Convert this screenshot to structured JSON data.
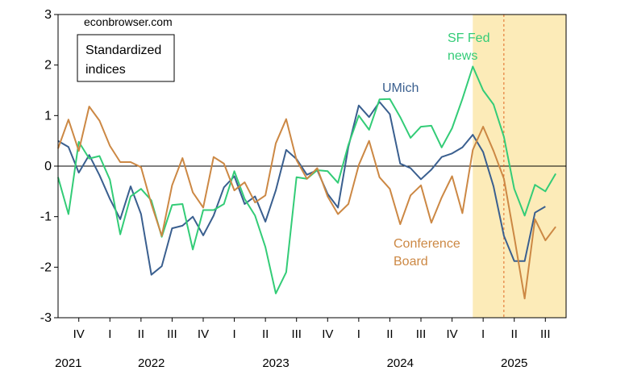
{
  "chart_data": {
    "type": "line",
    "source_note": "econbrowser.com",
    "title_box": [
      "Standardized",
      "indices"
    ],
    "ylim": [
      -3,
      3
    ],
    "yticks": [
      3,
      2,
      1,
      0,
      -1,
      -2,
      -3
    ],
    "x_start": "2021-09",
    "shade_start": "2025-01",
    "vline": "2025-04",
    "quarter_ticks": [
      "IV",
      "I",
      "II",
      "III",
      "IV",
      "I",
      "II",
      "III",
      "IV",
      "I",
      "II",
      "III",
      "IV",
      "I",
      "II",
      "III"
    ],
    "years": [
      {
        "label": "2021",
        "month": "2021-10"
      },
      {
        "label": "2022",
        "month": "2022-06"
      },
      {
        "label": "2023",
        "month": "2023-06"
      },
      {
        "label": "2024",
        "month": "2024-06"
      },
      {
        "label": "2025",
        "month": "2025-05"
      }
    ],
    "series": [
      {
        "name": "UMich",
        "color": "#3a5f8f",
        "start": "2021-09",
        "values": [
          0.5,
          0.38,
          -0.13,
          0.22,
          -0.18,
          -0.65,
          -1.05,
          -0.4,
          -0.95,
          -2.15,
          -1.98,
          -1.23,
          -1.18,
          -1.0,
          -1.37,
          -0.98,
          -0.42,
          -0.2,
          -0.75,
          -0.6,
          -1.1,
          -0.48,
          0.32,
          0.14,
          -0.17,
          -0.08,
          -0.55,
          -0.82,
          0.38,
          1.2,
          0.97,
          1.27,
          1.03,
          0.05,
          -0.04,
          -0.26,
          -0.07,
          0.18,
          0.25,
          0.37,
          0.62,
          0.28,
          -0.4,
          -1.38,
          -1.88,
          -1.88,
          -0.92,
          -0.8
        ]
      },
      {
        "name": "SF Fed\nnews",
        "color": "#33cc77",
        "start": "2021-09",
        "values": [
          -0.22,
          -0.95,
          0.48,
          0.15,
          0.2,
          -0.27,
          -1.35,
          -0.6,
          -0.45,
          -0.68,
          -1.4,
          -0.77,
          -0.75,
          -1.65,
          -0.87,
          -0.87,
          -0.75,
          -0.1,
          -0.65,
          -0.98,
          -1.6,
          -2.52,
          -2.1,
          -0.22,
          -0.25,
          -0.08,
          -0.1,
          -0.33,
          0.42,
          1.0,
          0.72,
          1.32,
          1.33,
          0.97,
          0.56,
          0.78,
          0.8,
          0.37,
          0.75,
          1.33,
          1.97,
          1.5,
          1.22,
          0.58,
          -0.45,
          -0.98,
          -0.37,
          -0.5,
          -0.15
        ]
      },
      {
        "name": "Conference\nBoard",
        "color": "#cc8844",
        "start": "2021-09",
        "values": [
          0.35,
          0.92,
          0.3,
          1.18,
          0.9,
          0.4,
          0.08,
          0.08,
          -0.02,
          -0.75,
          -1.38,
          -0.38,
          0.16,
          -0.52,
          -0.82,
          0.18,
          0.05,
          -0.48,
          -0.32,
          -0.72,
          -0.58,
          0.45,
          0.93,
          0.12,
          -0.25,
          -0.04,
          -0.6,
          -0.95,
          -0.75,
          0.02,
          0.5,
          -0.22,
          -0.45,
          -1.15,
          -0.58,
          -0.38,
          -1.12,
          -0.62,
          -0.2,
          -0.93,
          0.32,
          0.78,
          0.3,
          -0.25,
          -1.4,
          -2.62,
          -1.05,
          -1.47,
          -1.2
        ]
      }
    ]
  }
}
